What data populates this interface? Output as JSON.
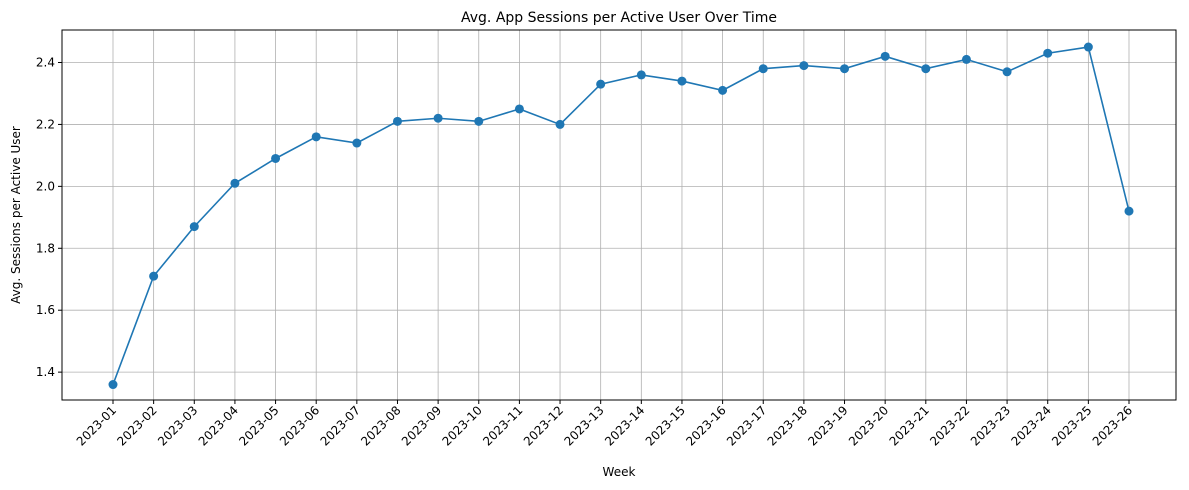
{
  "chart_data": {
    "type": "line",
    "title": "Avg. App Sessions per Active User Over Time",
    "xlabel": "Week",
    "ylabel": "Avg. Sessions per Active User",
    "categories": [
      "2023-01",
      "2023-02",
      "2023-03",
      "2023-04",
      "2023-05",
      "2023-06",
      "2023-07",
      "2023-08",
      "2023-09",
      "2023-10",
      "2023-11",
      "2023-12",
      "2023-13",
      "2023-14",
      "2023-15",
      "2023-16",
      "2023-17",
      "2023-18",
      "2023-19",
      "2023-20",
      "2023-21",
      "2023-22",
      "2023-23",
      "2023-24",
      "2023-25",
      "2023-26"
    ],
    "series": [
      {
        "values": [
          1.36,
          1.71,
          1.87,
          2.01,
          2.09,
          2.16,
          2.14,
          2.21,
          2.22,
          2.21,
          2.25,
          2.2,
          2.33,
          2.36,
          2.34,
          2.31,
          2.38,
          2.39,
          2.38,
          2.42,
          2.38,
          2.41,
          2.37,
          2.43,
          2.45,
          1.92
        ],
        "color": "#1f77b4"
      }
    ],
    "ylim": [
      1.31,
      2.505
    ],
    "yticks": [
      1.4,
      1.6,
      1.8,
      2.0,
      2.2,
      2.4
    ],
    "ytick_labels": [
      "1.4",
      "1.6",
      "1.8",
      "2.0",
      "2.2",
      "2.4"
    ],
    "grid": true,
    "marker": "circle"
  }
}
